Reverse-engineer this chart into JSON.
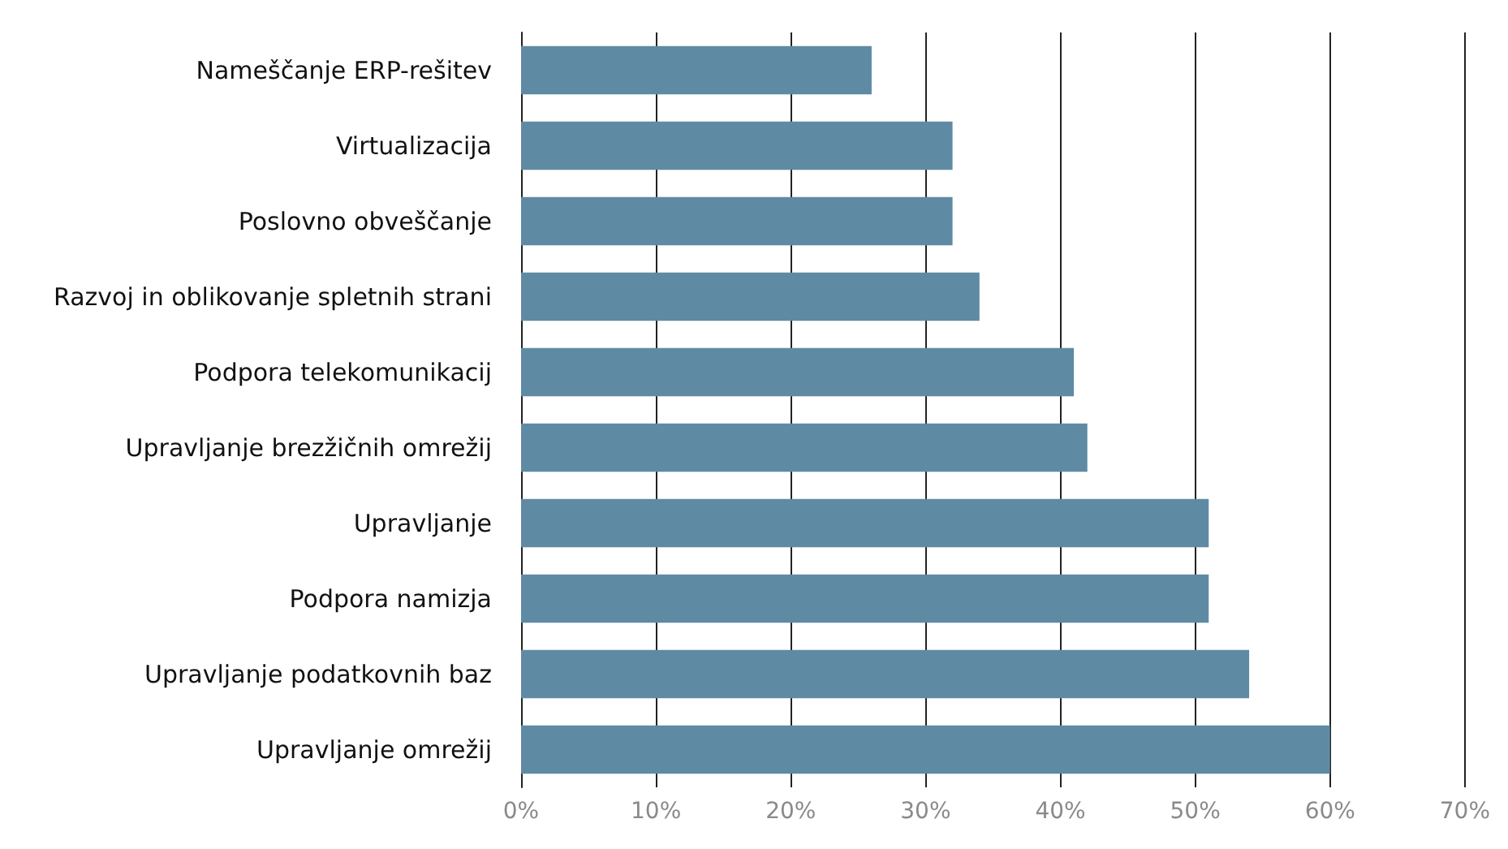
{
  "chart_data": {
    "type": "bar",
    "orientation": "horizontal",
    "categories": [
      "Nameščanje ERP-rešitev",
      "Virtualizacija",
      "Poslovno obveščanje",
      "Razvoj in oblikovanje spletnih strani",
      "Podpora telekomunikacij",
      "Upravljanje brezžičnih omrežij",
      "Upravljanje",
      "Podpora namizja",
      "Upravljanje podatkovnih baz",
      "Upravljanje omrežij"
    ],
    "values": [
      26,
      32,
      32,
      34,
      41,
      42,
      51,
      51,
      54,
      60
    ],
    "color": "#5f8aa3",
    "xlim": [
      0,
      70
    ],
    "xticks": [
      {
        "value": 0,
        "label": "0%"
      },
      {
        "value": 10,
        "label": "10%"
      },
      {
        "value": 20,
        "label": "20%"
      },
      {
        "value": 30,
        "label": "30%"
      },
      {
        "value": 40,
        "label": "40%"
      },
      {
        "value": 50,
        "label": "50%"
      },
      {
        "value": 60,
        "label": "60%"
      },
      {
        "value": 70,
        "label": "70%"
      }
    ],
    "grid": "x"
  }
}
